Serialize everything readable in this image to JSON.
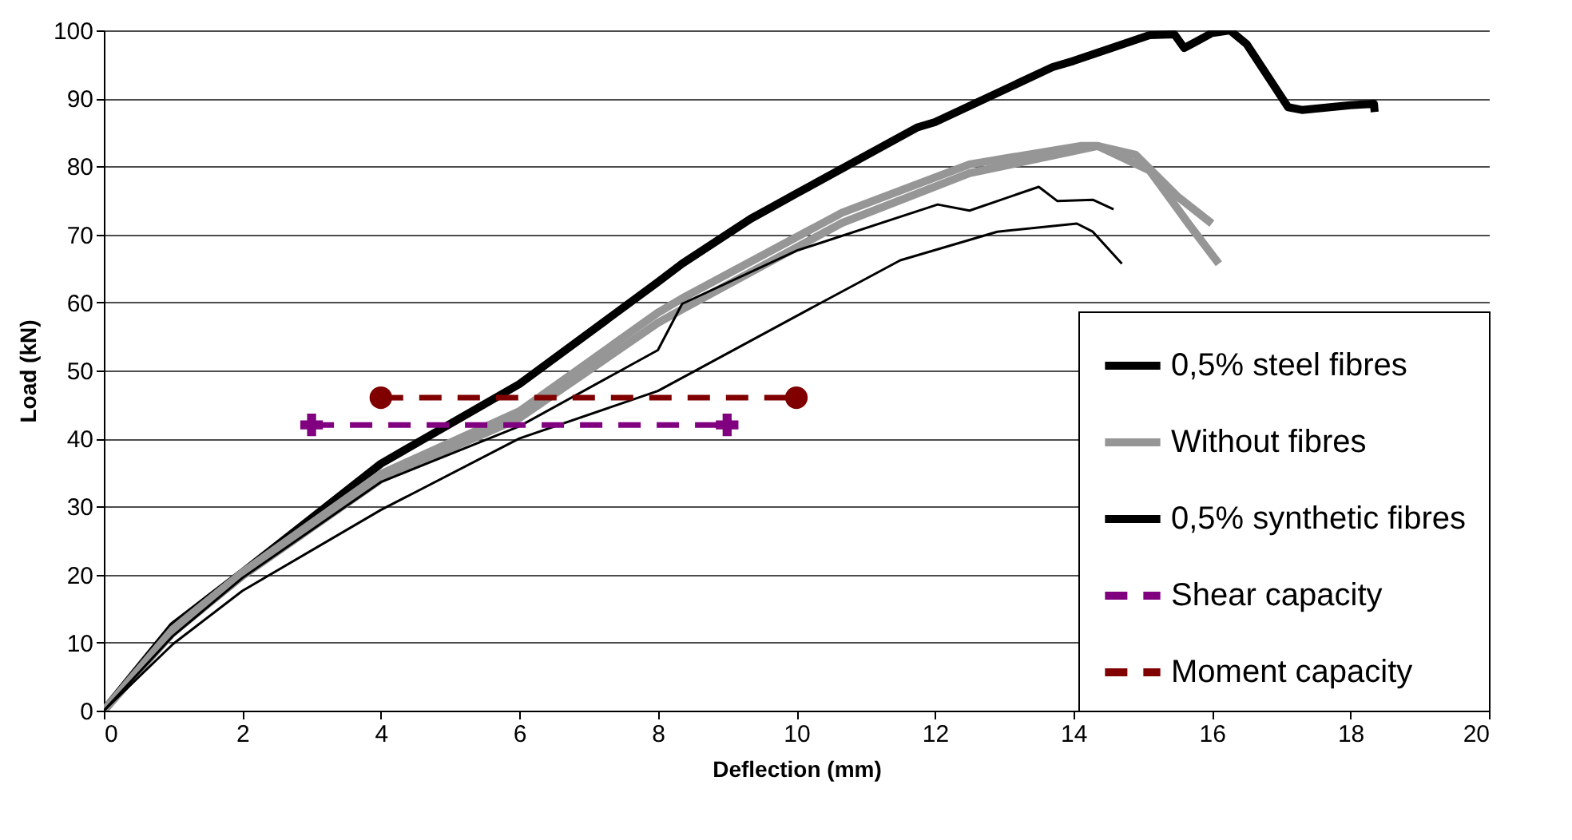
{
  "chart_data": {
    "type": "line",
    "xlabel": "Deflection (mm)",
    "ylabel": "Load (kN)",
    "xlim": [
      0,
      20
    ],
    "ylim": [
      0,
      100
    ],
    "xticks": [
      0,
      2,
      4,
      6,
      8,
      10,
      12,
      14,
      16,
      18,
      20
    ],
    "yticks": [
      0,
      10,
      20,
      30,
      40,
      50,
      60,
      70,
      80,
      90,
      100
    ],
    "grid": "y",
    "legend": "bottom right",
    "line_style": "solid",
    "marker": "none",
    "series": [
      {
        "name": "0,5% steel fibres",
        "color": "#000000",
        "x": [
          0,
          1,
          2,
          4,
          6,
          8,
          8.35,
          9.34,
          10,
          11.74,
          12,
          13.7,
          14,
          15.1,
          15.46,
          15.6,
          15.8,
          16,
          16.26,
          16.5,
          17.1,
          17.3,
          18,
          18.34,
          18.35
        ],
        "values": [
          0,
          12.5,
          20.3,
          36.3,
          48,
          63,
          65.7,
          72.3,
          76,
          85.7,
          86.5,
          94.6,
          95.5,
          99.3,
          99.4,
          97.4,
          98.5,
          99.6,
          100,
          98,
          88.7,
          88.3,
          89,
          89.2,
          88
        ]
      },
      {
        "name": "Without fibres",
        "color": "#969696",
        "x": [
          0,
          1,
          2,
          4,
          6,
          8,
          8.35,
          10.66,
          12.5,
          14.1,
          14.35,
          14.9,
          15.5,
          16
        ],
        "values": [
          0,
          12,
          20.3,
          34.8,
          44,
          58.5,
          60.6,
          73.2,
          80.3,
          83,
          83,
          81.7,
          75.6,
          71.6
        ]
      },
      {
        "color": "#969696",
        "x": [
          0,
          1,
          2,
          4,
          6,
          8,
          8.35,
          10.66,
          12.5,
          14.35,
          15.1,
          15.66,
          16.1
        ],
        "values": [
          0,
          11.5,
          19.8,
          34,
          43,
          57,
          59,
          71.7,
          79,
          83,
          79.4,
          71.6,
          65.7
        ]
      },
      {
        "name": "0,5% synthetic fibres",
        "color": "#000000",
        "x": [
          0,
          1,
          2,
          4,
          6,
          8,
          8.35,
          10,
          12.04,
          12.5,
          13.5,
          13.77,
          14.28,
          14.58
        ],
        "values": [
          0,
          11,
          19.5,
          33.6,
          41.8,
          53,
          59.8,
          67.6,
          74.4,
          73.5,
          77,
          74.9,
          75.1,
          73.7
        ]
      },
      {
        "color": "#000000",
        "x": [
          0,
          1,
          2,
          4,
          6,
          8,
          10,
          11.5,
          12.9,
          14.05,
          14.28,
          14.7
        ],
        "values": [
          0,
          9.8,
          17.6,
          29.5,
          40,
          47,
          58,
          66.2,
          70.4,
          71.6,
          70.4,
          65.7
        ]
      },
      {
        "name": "Shear capacity",
        "color": "#800080",
        "line_style": "dashed",
        "marker": "cross",
        "x": [
          3,
          9
        ],
        "values": [
          42,
          42
        ]
      },
      {
        "name": "Moment capacity",
        "color": "#800000",
        "line_style": "dashed",
        "marker": "circle",
        "x": [
          4,
          10
        ],
        "values": [
          46,
          46
        ]
      }
    ]
  }
}
